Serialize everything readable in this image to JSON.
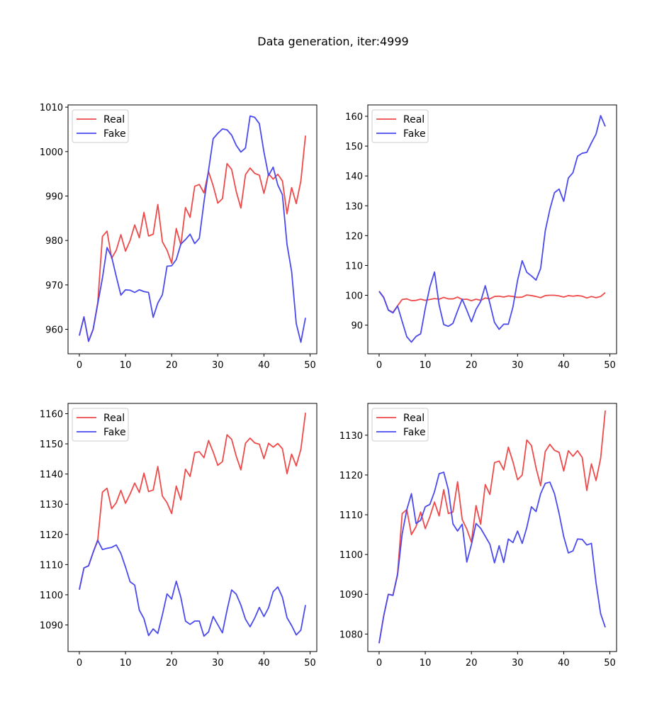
{
  "figure": {
    "title": "Data generation, iter:4999"
  },
  "colors": {
    "real": "#ef4a4a",
    "fake": "#4a4aef"
  },
  "chart_data": [
    {
      "type": "line",
      "xlim": [
        -2.45,
        51.45
      ],
      "ylim": [
        954.5,
        1010.5
      ],
      "xticks": [
        0,
        10,
        20,
        30,
        40,
        50
      ],
      "yticks": [
        960,
        970,
        980,
        990,
        1000,
        1010
      ],
      "legend": {
        "placement": "upper-left",
        "entries": [
          "Real",
          "Fake"
        ]
      },
      "series": [
        {
          "name": "Real",
          "color": "#ef4a4a",
          "values": [
            958.6,
            962.8,
            957.3,
            960.1,
            966.1,
            980.9,
            982.1,
            976.0,
            977.8,
            981.3,
            977.6,
            980.0,
            983.5,
            980.6,
            986.3,
            981.0,
            981.4,
            988.1,
            979.7,
            977.8,
            974.9,
            982.7,
            979.0,
            987.4,
            985.2,
            992.2,
            992.6,
            990.7,
            995.5,
            992.3,
            988.4,
            989.4,
            997.3,
            996.0,
            991.0,
            987.3,
            994.8,
            996.3,
            995.1,
            994.7,
            990.6,
            995.0,
            993.8,
            994.9,
            993.4,
            986.0,
            991.9,
            988.3,
            993.4,
            1003.6
          ]
        },
        {
          "name": "Fake",
          "color": "#4a4aef",
          "values": [
            958.6,
            962.8,
            957.3,
            960.0,
            965.8,
            971.5,
            978.4,
            976.3,
            971.9,
            967.7,
            968.9,
            968.8,
            968.3,
            968.9,
            968.5,
            968.3,
            962.7,
            965.9,
            967.8,
            974.2,
            974.3,
            975.7,
            979.2,
            980.2,
            981.4,
            979.3,
            980.5,
            988.6,
            995.8,
            1002.9,
            1004.1,
            1005.1,
            1004.9,
            1003.7,
            1001.4,
            999.9,
            1000.8,
            1008.0,
            1007.7,
            1006.3,
            999.9,
            994.6,
            996.5,
            992.5,
            990.3,
            979.1,
            973.0,
            961.3,
            957.1,
            962.6
          ]
        }
      ]
    },
    {
      "type": "line",
      "xlim": [
        -2.45,
        51.45
      ],
      "ylim": [
        80.4,
        163.8
      ],
      "xticks": [
        0,
        10,
        20,
        30,
        40,
        50
      ],
      "yticks": [
        90,
        100,
        110,
        120,
        130,
        140,
        150,
        160
      ],
      "legend": {
        "placement": "upper-left",
        "entries": [
          "Real",
          "Fake"
        ]
      },
      "series": [
        {
          "name": "Real",
          "color": "#ef4a4a",
          "values": [
            101.4,
            99.3,
            95.1,
            94.3,
            96.5,
            98.6,
            98.8,
            98.2,
            98.3,
            98.7,
            98.3,
            98.6,
            98.9,
            98.7,
            99.3,
            98.8,
            98.8,
            99.4,
            98.6,
            98.7,
            98.2,
            98.7,
            98.3,
            99.1,
            98.8,
            99.6,
            99.7,
            99.4,
            99.8,
            99.6,
            99.3,
            99.4,
            100.1,
            99.9,
            99.6,
            99.2,
            99.9,
            100.0,
            100.0,
            99.8,
            99.4,
            99.9,
            99.7,
            99.9,
            99.7,
            99.1,
            99.6,
            99.2,
            99.6,
            100.9
          ]
        },
        {
          "name": "Fake",
          "color": "#4a4aef",
          "values": [
            101.3,
            99.2,
            95.0,
            94.1,
            96.4,
            91.2,
            86.1,
            84.3,
            86.2,
            87.1,
            95.6,
            102.8,
            107.8,
            96.8,
            90.2,
            89.6,
            90.6,
            94.8,
            98.7,
            95.0,
            91.1,
            95.3,
            97.9,
            103.2,
            97.3,
            90.9,
            88.6,
            90.3,
            90.3,
            96.1,
            105.0,
            111.6,
            107.7,
            106.5,
            105.1,
            109.0,
            121.6,
            128.8,
            134.4,
            135.6,
            131.5,
            139.3,
            141.1,
            146.6,
            147.6,
            147.9,
            151.1,
            154.0,
            160.2,
            156.6
          ]
        }
      ]
    },
    {
      "type": "line",
      "xlim": [
        -2.45,
        51.45
      ],
      "ylim": [
        1081.2,
        1163.4
      ],
      "xticks": [
        0,
        10,
        20,
        30,
        40,
        50
      ],
      "yticks": [
        1090,
        1100,
        1110,
        1120,
        1130,
        1140,
        1150,
        1160
      ],
      "legend": {
        "placement": "upper-left",
        "entries": [
          "Real",
          "Fake"
        ]
      },
      "series": [
        {
          "name": "Real",
          "color": "#ef4a4a",
          "values": [
            1101.7,
            1108.9,
            1109.6,
            1114.1,
            1118.3,
            1134.0,
            1135.3,
            1128.5,
            1130.5,
            1134.6,
            1130.3,
            1133.4,
            1137.0,
            1133.9,
            1140.3,
            1134.2,
            1134.7,
            1142.5,
            1132.7,
            1130.5,
            1126.9,
            1136.0,
            1131.4,
            1141.6,
            1139.2,
            1147.1,
            1147.4,
            1145.4,
            1151.1,
            1147.3,
            1142.9,
            1144.1,
            1153.0,
            1151.5,
            1145.9,
            1141.4,
            1150.2,
            1151.9,
            1150.3,
            1149.9,
            1145.1,
            1150.2,
            1148.9,
            1150.1,
            1148.4,
            1140.1,
            1146.6,
            1142.7,
            1148.2,
            1160.3
          ]
        },
        {
          "name": "Fake",
          "color": "#4a4aef",
          "values": [
            1101.7,
            1108.9,
            1109.6,
            1114.1,
            1118.0,
            1115.0,
            1115.4,
            1115.7,
            1116.5,
            1113.7,
            1109.2,
            1104.3,
            1103.2,
            1094.9,
            1092.1,
            1086.5,
            1088.7,
            1087.2,
            1093.4,
            1100.3,
            1098.6,
            1104.5,
            1099.1,
            1091.3,
            1090.2,
            1091.3,
            1091.3,
            1086.3,
            1087.7,
            1092.8,
            1090.1,
            1087.4,
            1094.9,
            1101.6,
            1100.2,
            1096.6,
            1091.9,
            1089.4,
            1092.3,
            1095.8,
            1092.8,
            1095.7,
            1101.0,
            1102.6,
            1099.2,
            1092.4,
            1089.8,
            1086.7,
            1088.3,
            1096.6
          ]
        }
      ]
    },
    {
      "type": "line",
      "xlim": [
        -2.45,
        51.45
      ],
      "ylim": [
        1075.6,
        1138.0
      ],
      "xticks": [
        0,
        10,
        20,
        30,
        40,
        50
      ],
      "yticks": [
        1080,
        1090,
        1100,
        1110,
        1120,
        1130
      ],
      "legend": {
        "placement": "upper-left",
        "entries": [
          "Real",
          "Fake"
        ]
      },
      "series": [
        {
          "name": "Real",
          "color": "#ef4a4a",
          "values": [
            1077.7,
            1084.6,
            1090.0,
            1089.8,
            1095.2,
            1110.3,
            1111.3,
            1105.0,
            1107.0,
            1110.7,
            1106.5,
            1109.5,
            1113.2,
            1109.7,
            1116.3,
            1110.3,
            1110.7,
            1118.3,
            1108.8,
            1106.4,
            1103.1,
            1112.3,
            1107.6,
            1117.6,
            1115.1,
            1123.1,
            1123.5,
            1121.3,
            1127.0,
            1123.3,
            1118.8,
            1120.0,
            1128.8,
            1127.4,
            1121.8,
            1117.3,
            1125.9,
            1127.7,
            1126.2,
            1125.7,
            1121.0,
            1126.1,
            1124.7,
            1126.1,
            1124.4,
            1116.1,
            1122.8,
            1118.6,
            1124.2,
            1136.2
          ]
        },
        {
          "name": "Fake",
          "color": "#4a4aef",
          "values": [
            1077.7,
            1084.6,
            1090.0,
            1089.7,
            1094.9,
            1105.2,
            1111.3,
            1115.3,
            1107.8,
            1108.6,
            1112.0,
            1112.6,
            1115.8,
            1120.3,
            1120.7,
            1116.3,
            1107.7,
            1105.9,
            1107.6,
            1098.1,
            1102.5,
            1107.8,
            1106.6,
            1104.6,
            1102.6,
            1097.9,
            1102.2,
            1098.0,
            1103.9,
            1103.0,
            1105.9,
            1102.8,
            1106.8,
            1112.0,
            1110.8,
            1115.3,
            1117.9,
            1118.2,
            1115.3,
            1110.3,
            1104.5,
            1100.4,
            1100.9,
            1103.9,
            1103.8,
            1102.4,
            1102.8,
            1092.9,
            1085.1,
            1081.7
          ]
        }
      ]
    }
  ]
}
